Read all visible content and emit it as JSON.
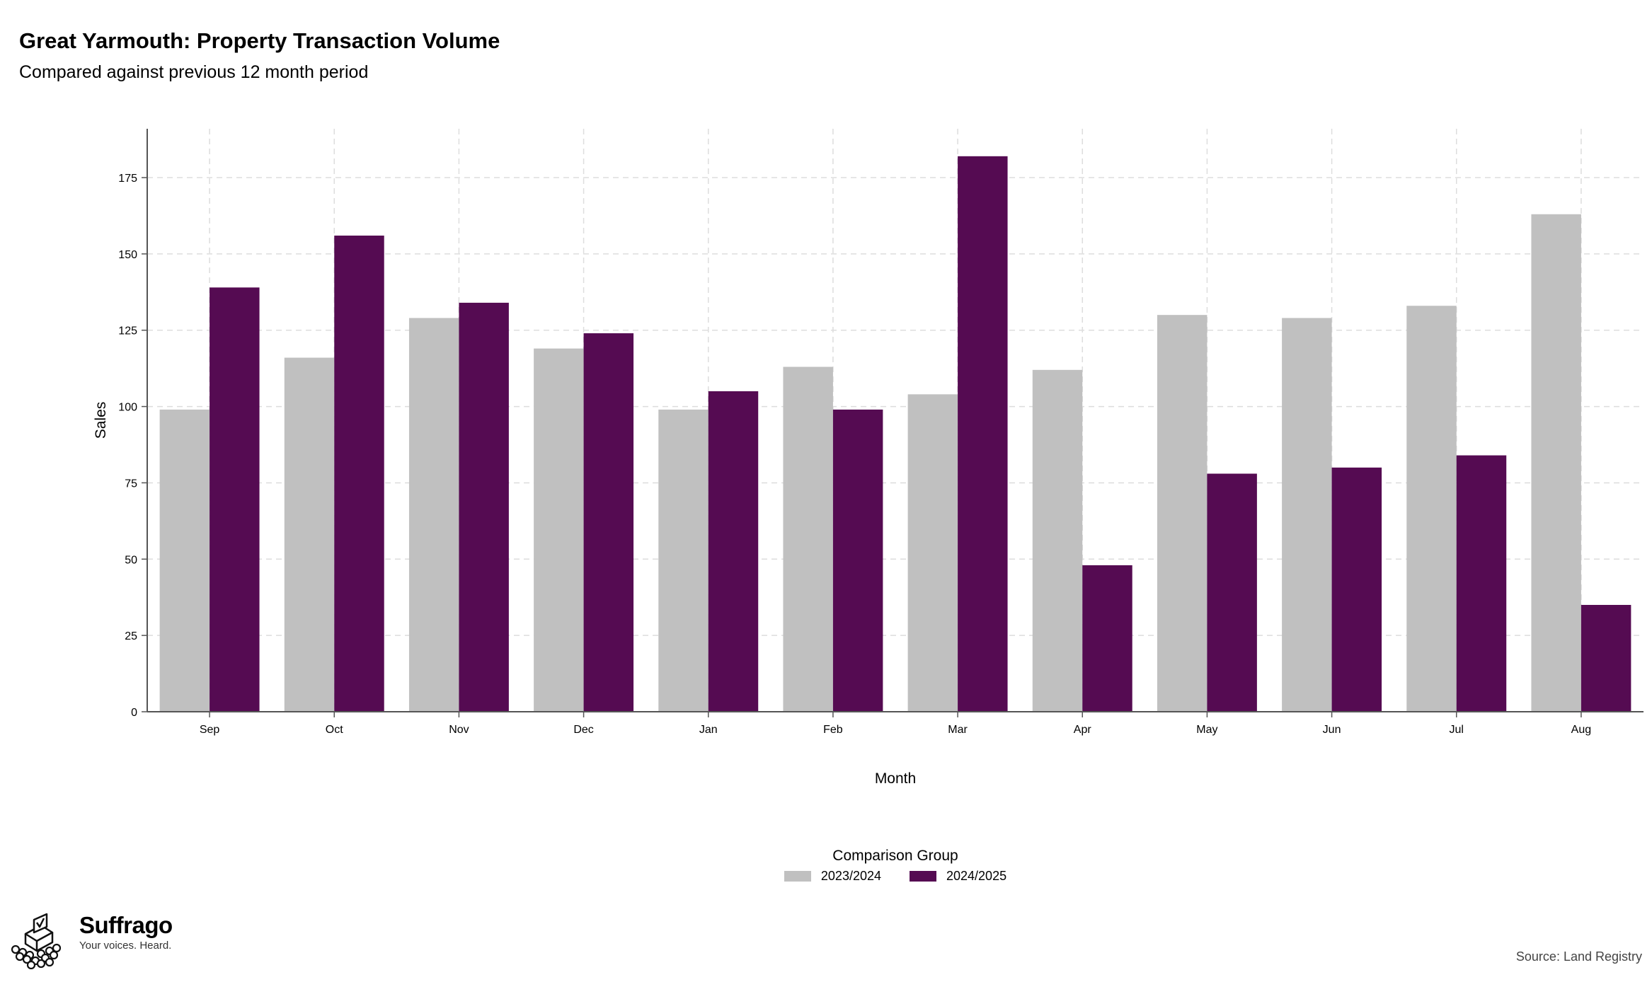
{
  "header": {
    "title": "Great Yarmouth: Property Transaction Volume",
    "subtitle": "Compared against previous 12 month period"
  },
  "legend": {
    "title": "Comparison Group",
    "position": "bottom-center"
  },
  "footer": {
    "brand_name": "Suffrago",
    "brand_tagline": "Your voices. Heard.",
    "source": "Source: Land Registry"
  },
  "colors": {
    "series_2023_2024": "#c0c0c0",
    "series_2024_2025": "#550b52",
    "grid": "#dddddd",
    "axis": "#555555"
  },
  "icons": {
    "brand_logo": "ballot-box-crowd-icon"
  },
  "chart_data": {
    "type": "bar",
    "title": "Great Yarmouth: Property Transaction Volume",
    "subtitle": "Compared against previous 12 month period",
    "xlabel": "Month",
    "ylabel": "Sales",
    "categories": [
      "Sep",
      "Oct",
      "Nov",
      "Dec",
      "Jan",
      "Feb",
      "Mar",
      "Apr",
      "May",
      "Jun",
      "Jul",
      "Aug"
    ],
    "series": [
      {
        "name": "2023/2024",
        "values": [
          99,
          116,
          129,
          119,
          99,
          113,
          104,
          112,
          130,
          129,
          133,
          163
        ]
      },
      {
        "name": "2024/2025",
        "values": [
          139,
          156,
          134,
          124,
          105,
          99,
          182,
          48,
          78,
          80,
          84,
          35
        ]
      }
    ],
    "yticks": [
      0,
      25,
      50,
      75,
      100,
      125,
      150,
      175
    ],
    "ylim": [
      0,
      191
    ],
    "grid": true,
    "legend_position": "bottom-center"
  }
}
